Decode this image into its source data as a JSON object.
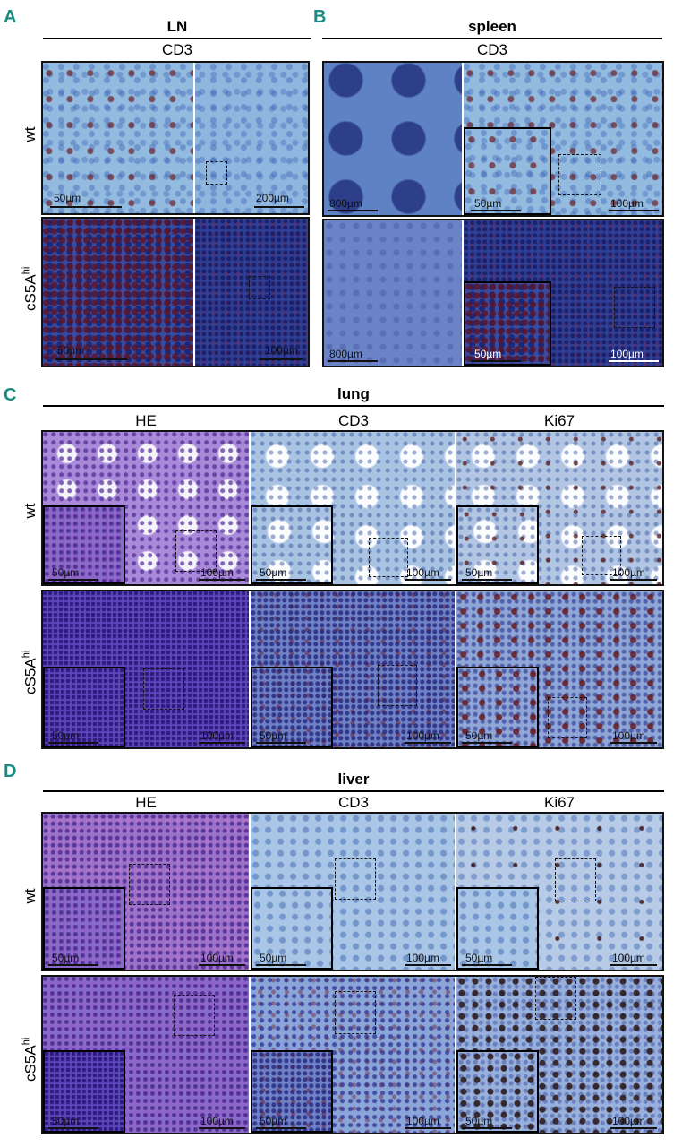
{
  "panels": {
    "A": {
      "label": "A",
      "title": "LN",
      "stain": "CD3",
      "scale_left": "50µm",
      "scale_right": "200µm",
      "scale_right_2": "100µm"
    },
    "B": {
      "label": "B",
      "title": "spleen",
      "stain": "CD3",
      "scale_left": "800µm",
      "scale_right": "100µm",
      "scale_inset": "50µm"
    },
    "C": {
      "label": "C",
      "title": "lung",
      "cols": [
        "HE",
        "CD3",
        "Ki67"
      ],
      "scale_inset": "50µm",
      "scale_main": "100µm"
    },
    "D": {
      "label": "D",
      "title": "liver",
      "cols": [
        "HE",
        "CD3",
        "Ki67"
      ],
      "scale_inset": "50µm",
      "scale_main": "100µm"
    }
  },
  "rows": {
    "wt": "wt",
    "mut": "cS5A",
    "mut_sup": "hi"
  },
  "colors": {
    "panel_label": "#1a8c84"
  }
}
